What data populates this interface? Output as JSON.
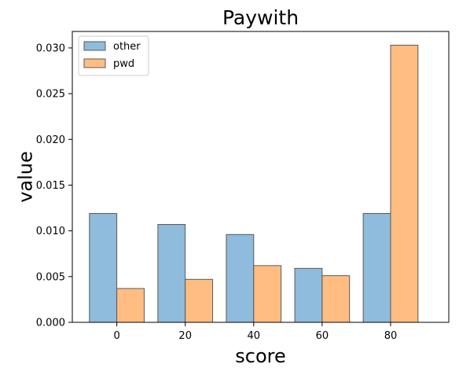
{
  "chart_data": {
    "type": "bar",
    "title": "Paywith",
    "xlabel": "score",
    "ylabel": "value",
    "categories": [
      "0",
      "20",
      "40",
      "60",
      "80"
    ],
    "x": [
      0,
      20,
      40,
      60,
      80
    ],
    "xlim": [
      -13,
      97
    ],
    "ylim": [
      0,
      0.0318
    ],
    "yticks": [
      "0.000",
      "0.005",
      "0.010",
      "0.015",
      "0.020",
      "0.025",
      "0.030"
    ],
    "ytick_values": [
      0,
      0.005,
      0.01,
      0.015,
      0.02,
      0.025,
      0.03
    ],
    "grid": false,
    "legend_position": "top-left",
    "series": [
      {
        "name": "other",
        "color": "#8fbbdc",
        "values": [
          0.0119,
          0.0107,
          0.0096,
          0.0059,
          0.0119
        ]
      },
      {
        "name": "pwd",
        "color": "#ffbd82",
        "values": [
          0.0037,
          0.0047,
          0.0062,
          0.0051,
          0.0303
        ]
      }
    ],
    "bar_width": 8,
    "bar_edge_color": "#5a5a5a"
  }
}
